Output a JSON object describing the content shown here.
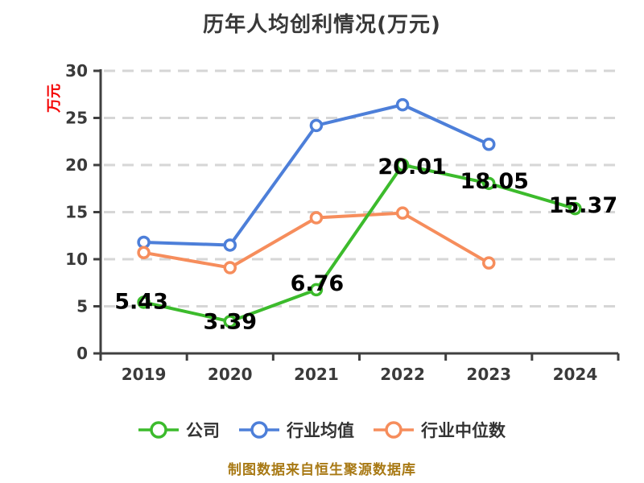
{
  "title": "历年人均创利情况(万元)",
  "y_axis_label": "万元",
  "footer": {
    "text": "制图数据来自恒生聚源数据库",
    "color": "#a87914"
  },
  "chart_data": {
    "type": "line",
    "categories": [
      "2019",
      "2020",
      "2021",
      "2022",
      "2023",
      "2024"
    ],
    "series": [
      {
        "name": "公司",
        "color": "#3cbb2c",
        "values": [
          5.43,
          3.39,
          6.76,
          20.01,
          18.05,
          15.37
        ],
        "labels": [
          "5.43",
          "3.39",
          "6.76",
          "20.01",
          "18.05",
          "15.37"
        ],
        "label_offsets": [
          [
            -3,
            -1
          ],
          [
            0,
            0
          ],
          [
            1,
            -8
          ],
          [
            12,
            2
          ],
          [
            7,
            -3
          ],
          [
            10,
            -4
          ]
        ]
      },
      {
        "name": "行业均值",
        "color": "#4d7fd9",
        "values": [
          11.8,
          11.5,
          24.2,
          26.4,
          22.2,
          null
        ]
      },
      {
        "name": "行业中位数",
        "color": "#f68d5c",
        "values": [
          10.7,
          9.1,
          14.4,
          14.9,
          9.6,
          null
        ]
      }
    ],
    "title": "历年人均创利情况(万元)",
    "xlabel": "",
    "ylabel": "万元",
    "ylim": [
      0,
      30
    ],
    "yticks": [
      0,
      5,
      10,
      15,
      20,
      25,
      30
    ],
    "grid": "dashed-horizontal",
    "legend_position": "bottom",
    "marker": "circle-white-fill",
    "style": {
      "background": "#ffffff",
      "axis": "#3f3f3f",
      "grid": "#d6d6d6",
      "tick_label": "#3a3a3a",
      "data_label": "#000000",
      "title_color": "#383838",
      "y_axis_label_color": "#f40000",
      "legend_text": "#333333"
    }
  }
}
